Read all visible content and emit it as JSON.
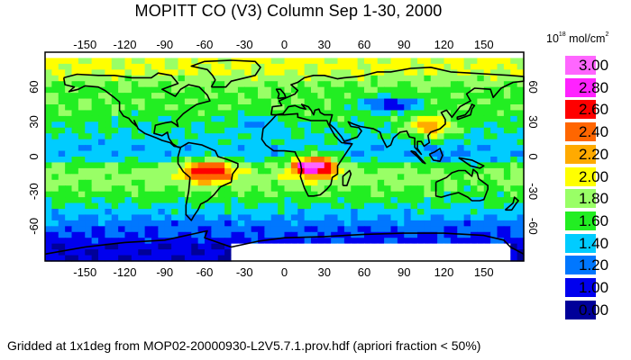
{
  "title": "MOPITT CO (V3) Column Sep 1-30, 2000",
  "footer": "Gridded at 1x1deg from MOP02-20000930-L2V5.7.1.prov.hdf (apriori fraction < 50%)",
  "legend": {
    "unit_base": "10",
    "unit_exp": "18",
    "unit_rest": " mol/cm",
    "unit_sq": "2",
    "entries": [
      {
        "label": "3.00",
        "color": "#ff66ff"
      },
      {
        "label": "2.80",
        "color": "#ff22ff"
      },
      {
        "label": "2.60",
        "color": "#ff0000"
      },
      {
        "label": "2.40",
        "color": "#ff6600"
      },
      {
        "label": "2.20",
        "color": "#ffaa00"
      },
      {
        "label": "2.00",
        "color": "#ffff00"
      },
      {
        "label": "1.80",
        "color": "#99ff66"
      },
      {
        "label": "1.60",
        "color": "#22ee22"
      },
      {
        "label": "1.40",
        "color": "#00ccff"
      },
      {
        "label": "1.20",
        "color": "#0077ff"
      },
      {
        "label": "1.00",
        "color": "#0000ee"
      },
      {
        "label": "0.00",
        "color": "#000099"
      }
    ]
  },
  "axes": {
    "lon_ticks": [
      "-150",
      "-120",
      "-90",
      "-60",
      "-30",
      "0",
      "30",
      "60",
      "90",
      "120",
      "150"
    ],
    "lat_ticks": [
      "60",
      "30",
      "0",
      "-30",
      "-60"
    ]
  },
  "colors": {
    "background": "#ffffff",
    "coastline": "#000000",
    "no_data": "#ffffff"
  }
}
